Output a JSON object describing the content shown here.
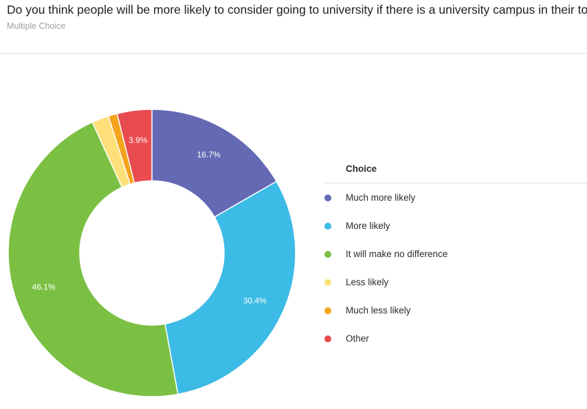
{
  "question": {
    "title": "Do you think people will be more likely to consider going to university if there is a university campus in their town?",
    "type": "Multiple Choice"
  },
  "legend": {
    "title": "Choice"
  },
  "chart_data": {
    "type": "pie",
    "variant": "donut",
    "categories": [
      "Much more likely",
      "More likely",
      "It will make no difference",
      "Less likely",
      "Much less likely",
      "Other"
    ],
    "values": [
      16.7,
      30.4,
      46.1,
      1.9,
      1.0,
      3.9
    ],
    "data_labels": [
      "16.7%",
      "30.4%",
      "46.1%",
      "",
      "",
      "3.9%"
    ],
    "colors": [
      "#6469b4",
      "#3cbbe6",
      "#7bc043",
      "#fde07a",
      "#f5a31a",
      "#e84b50"
    ],
    "legend_position": "right"
  }
}
